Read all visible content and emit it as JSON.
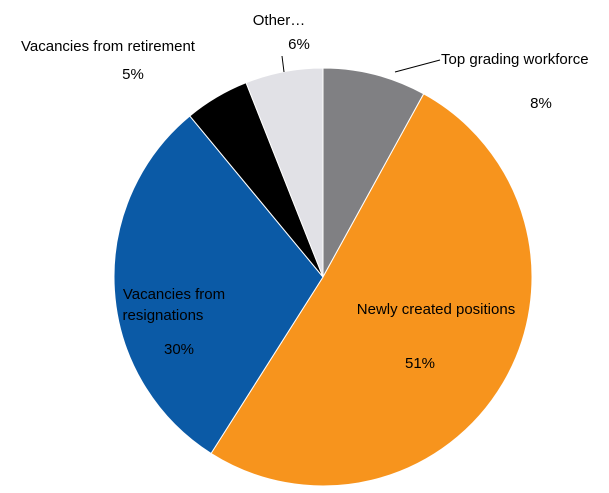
{
  "chart_data": {
    "type": "pie",
    "start_angle_deg": 0,
    "direction": "clockwise",
    "slices": [
      {
        "label": "Top grading workforce",
        "value": 8,
        "value_label": "8%",
        "color": "#808083"
      },
      {
        "label": "Newly created positions",
        "value": 51,
        "value_label": "51%",
        "color": "#f7941d"
      },
      {
        "label_lines": [
          "Vacancies from",
          "resignations"
        ],
        "value": 30,
        "value_label": "30%",
        "color": "#0b5aa6"
      },
      {
        "label": "Vacancies from retirement",
        "value": 5,
        "value_label": "5%",
        "color": "#000000"
      },
      {
        "label": "Other…",
        "value": 6,
        "value_label": "6%",
        "color": "#e1e1e6"
      }
    ]
  }
}
